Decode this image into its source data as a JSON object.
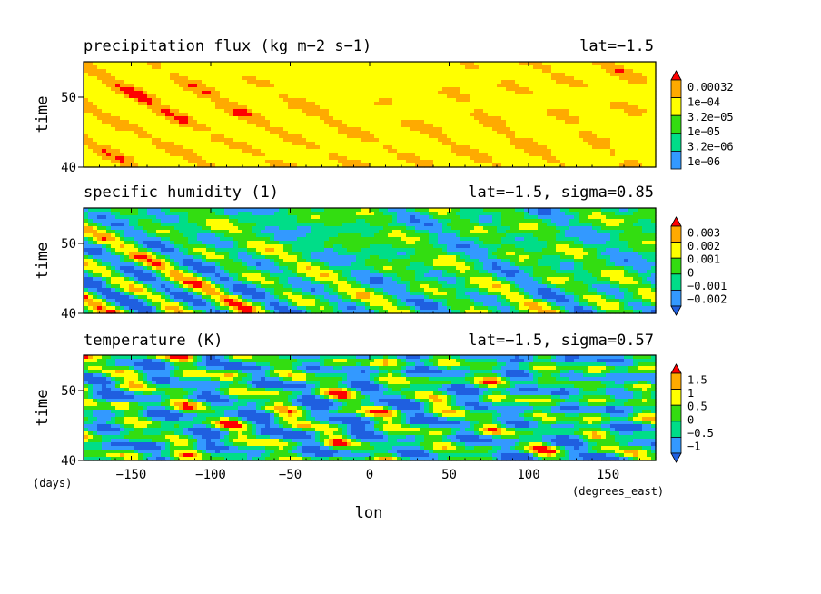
{
  "chart_data": [
    {
      "type": "heatmap",
      "title": "precipitation flux (kg m−2 s−1)",
      "subtitle": "lat=−1.5",
      "ylabel": "time",
      "xlim": [
        -180,
        180
      ],
      "ylim": [
        40,
        55
      ],
      "yticks": [
        "40",
        "50"
      ],
      "colorbar": {
        "labels": [
          "0.00032",
          "1e−04",
          "3.2e−05",
          "1e−05",
          "3.2e−06",
          "1e−06"
        ],
        "colors": [
          "#3399ff",
          "#00dd88",
          "#33dd11",
          "#ffff00",
          "#ffaa00",
          "#ff0000"
        ],
        "extend": "max"
      },
      "grid": false
    },
    {
      "type": "heatmap",
      "title": "specific humidity (1)",
      "subtitle": "lat=−1.5, sigma=0.85",
      "ylabel": "time",
      "xlim": [
        -180,
        180
      ],
      "ylim": [
        40,
        55
      ],
      "yticks": [
        "40",
        "50"
      ],
      "colorbar": {
        "labels": [
          "0.003",
          "0.002",
          "0.001",
          "0",
          "−0.001",
          "−0.002"
        ],
        "colors": [
          "#1f5fe0",
          "#3399ff",
          "#00dd88",
          "#33dd11",
          "#ffff00",
          "#ffaa00",
          "#ff0000"
        ],
        "extend": "both"
      },
      "grid": false
    },
    {
      "type": "heatmap",
      "title": "temperature (K)",
      "subtitle": "lat=−1.5, sigma=0.57",
      "ylabel": "time",
      "xlabel": "lon",
      "xunits": "(degrees_east)",
      "yunits": "(days)",
      "xlim": [
        -180,
        180
      ],
      "ylim": [
        40,
        55
      ],
      "yticks": [
        "40",
        "50"
      ],
      "xticks": [
        "−150",
        "−100",
        "−50",
        "0",
        "50",
        "100",
        "150"
      ],
      "colorbar": {
        "labels": [
          "1.5",
          "1",
          "0.5",
          "0",
          "−0.5",
          "−1"
        ],
        "colors": [
          "#1f5fe0",
          "#3399ff",
          "#00dd88",
          "#33dd11",
          "#ffff00",
          "#ffaa00",
          "#ff0000"
        ],
        "extend": "both"
      },
      "grid": false
    }
  ]
}
